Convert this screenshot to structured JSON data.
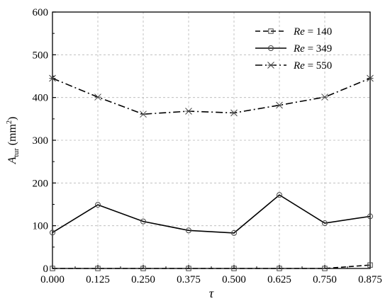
{
  "chart_data": {
    "type": "line",
    "title": "",
    "xlabel": "τ",
    "ylabel": {
      "base": "A",
      "sub": "tur",
      "unit_open": " (mm",
      "unit_sup": "2",
      "unit_close": ")"
    },
    "x": [
      0.0,
      0.125,
      0.25,
      0.375,
      0.5,
      0.625,
      0.75,
      0.875
    ],
    "x_tick_labels": [
      "0.000",
      "0.125",
      "0.250",
      "0.375",
      "0.500",
      "0.625",
      "0.750",
      "0.875"
    ],
    "xlim": [
      0.0,
      0.875
    ],
    "ylim": [
      0,
      600
    ],
    "y_ticks": [
      0,
      100,
      200,
      300,
      400,
      500,
      600
    ],
    "y_tick_labels": [
      "0",
      "100",
      "200",
      "300",
      "400",
      "500",
      "600"
    ],
    "grid": true,
    "legend_position": "top-right",
    "series": [
      {
        "name_var": "Re",
        "name_rest": " = 140",
        "marker": "square",
        "dash": "dash",
        "values": [
          0,
          0,
          0,
          0,
          0,
          0,
          0,
          8
        ]
      },
      {
        "name_var": "Re",
        "name_rest": " = 349",
        "marker": "circle",
        "dash": "solid",
        "values": [
          84,
          149,
          110,
          89,
          83,
          172,
          106,
          122
        ]
      },
      {
        "name_var": "Re",
        "name_rest": " = 550",
        "marker": "star",
        "dash": "dashdot",
        "values": [
          445,
          401,
          361,
          368,
          364,
          382,
          401,
          445
        ]
      }
    ]
  }
}
